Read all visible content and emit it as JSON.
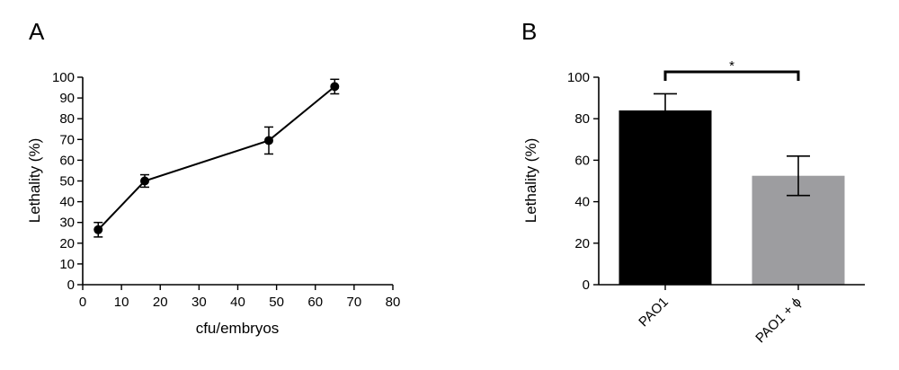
{
  "chart_data": [
    {
      "panel_label": "A",
      "type": "line",
      "title": "",
      "xlabel": "cfu/embryos",
      "ylabel": "Lethality (%)",
      "xlim": [
        0,
        80
      ],
      "ylim": [
        0,
        100
      ],
      "xticks": [
        "0",
        "10",
        "20",
        "30",
        "40",
        "50",
        "60",
        "70",
        "80"
      ],
      "yticks": [
        "0",
        "10",
        "20",
        "30",
        "40",
        "50",
        "60",
        "70",
        "80",
        "90",
        "100"
      ],
      "grid": false,
      "series": [
        {
          "name": "Lethality",
          "x": [
            4,
            16,
            48,
            65
          ],
          "values": [
            26.5,
            50,
            69.5,
            95.5
          ],
          "error": [
            3.5,
            3,
            6.5,
            3.5
          ]
        }
      ]
    },
    {
      "panel_label": "B",
      "type": "bar",
      "title": "",
      "xlabel": "",
      "ylabel": "Lethality (%)",
      "ylim": [
        0,
        100
      ],
      "yticks": [
        "0",
        "20",
        "40",
        "60",
        "80",
        "100"
      ],
      "grid": false,
      "categories": [
        "PAO1",
        "PAO1 + ϕ"
      ],
      "values": [
        84,
        52.5
      ],
      "error": [
        8,
        9.5
      ],
      "colors": [
        "#000000",
        "#9d9da0"
      ],
      "significance": {
        "between": [
          0,
          1
        ],
        "label": "*"
      }
    }
  ]
}
